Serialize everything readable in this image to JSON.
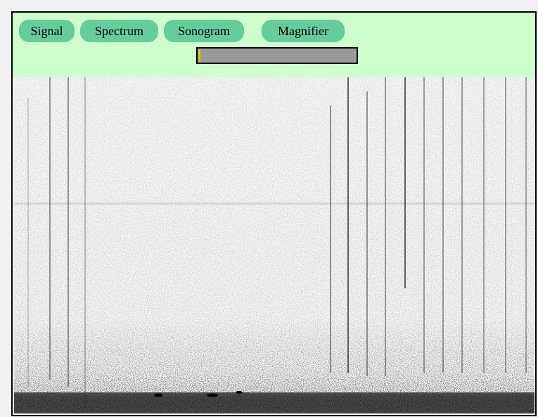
{
  "toolbar": {
    "buttons": [
      "Signal",
      "Spectrum",
      "Sonogram",
      "Magnifier"
    ]
  }
}
